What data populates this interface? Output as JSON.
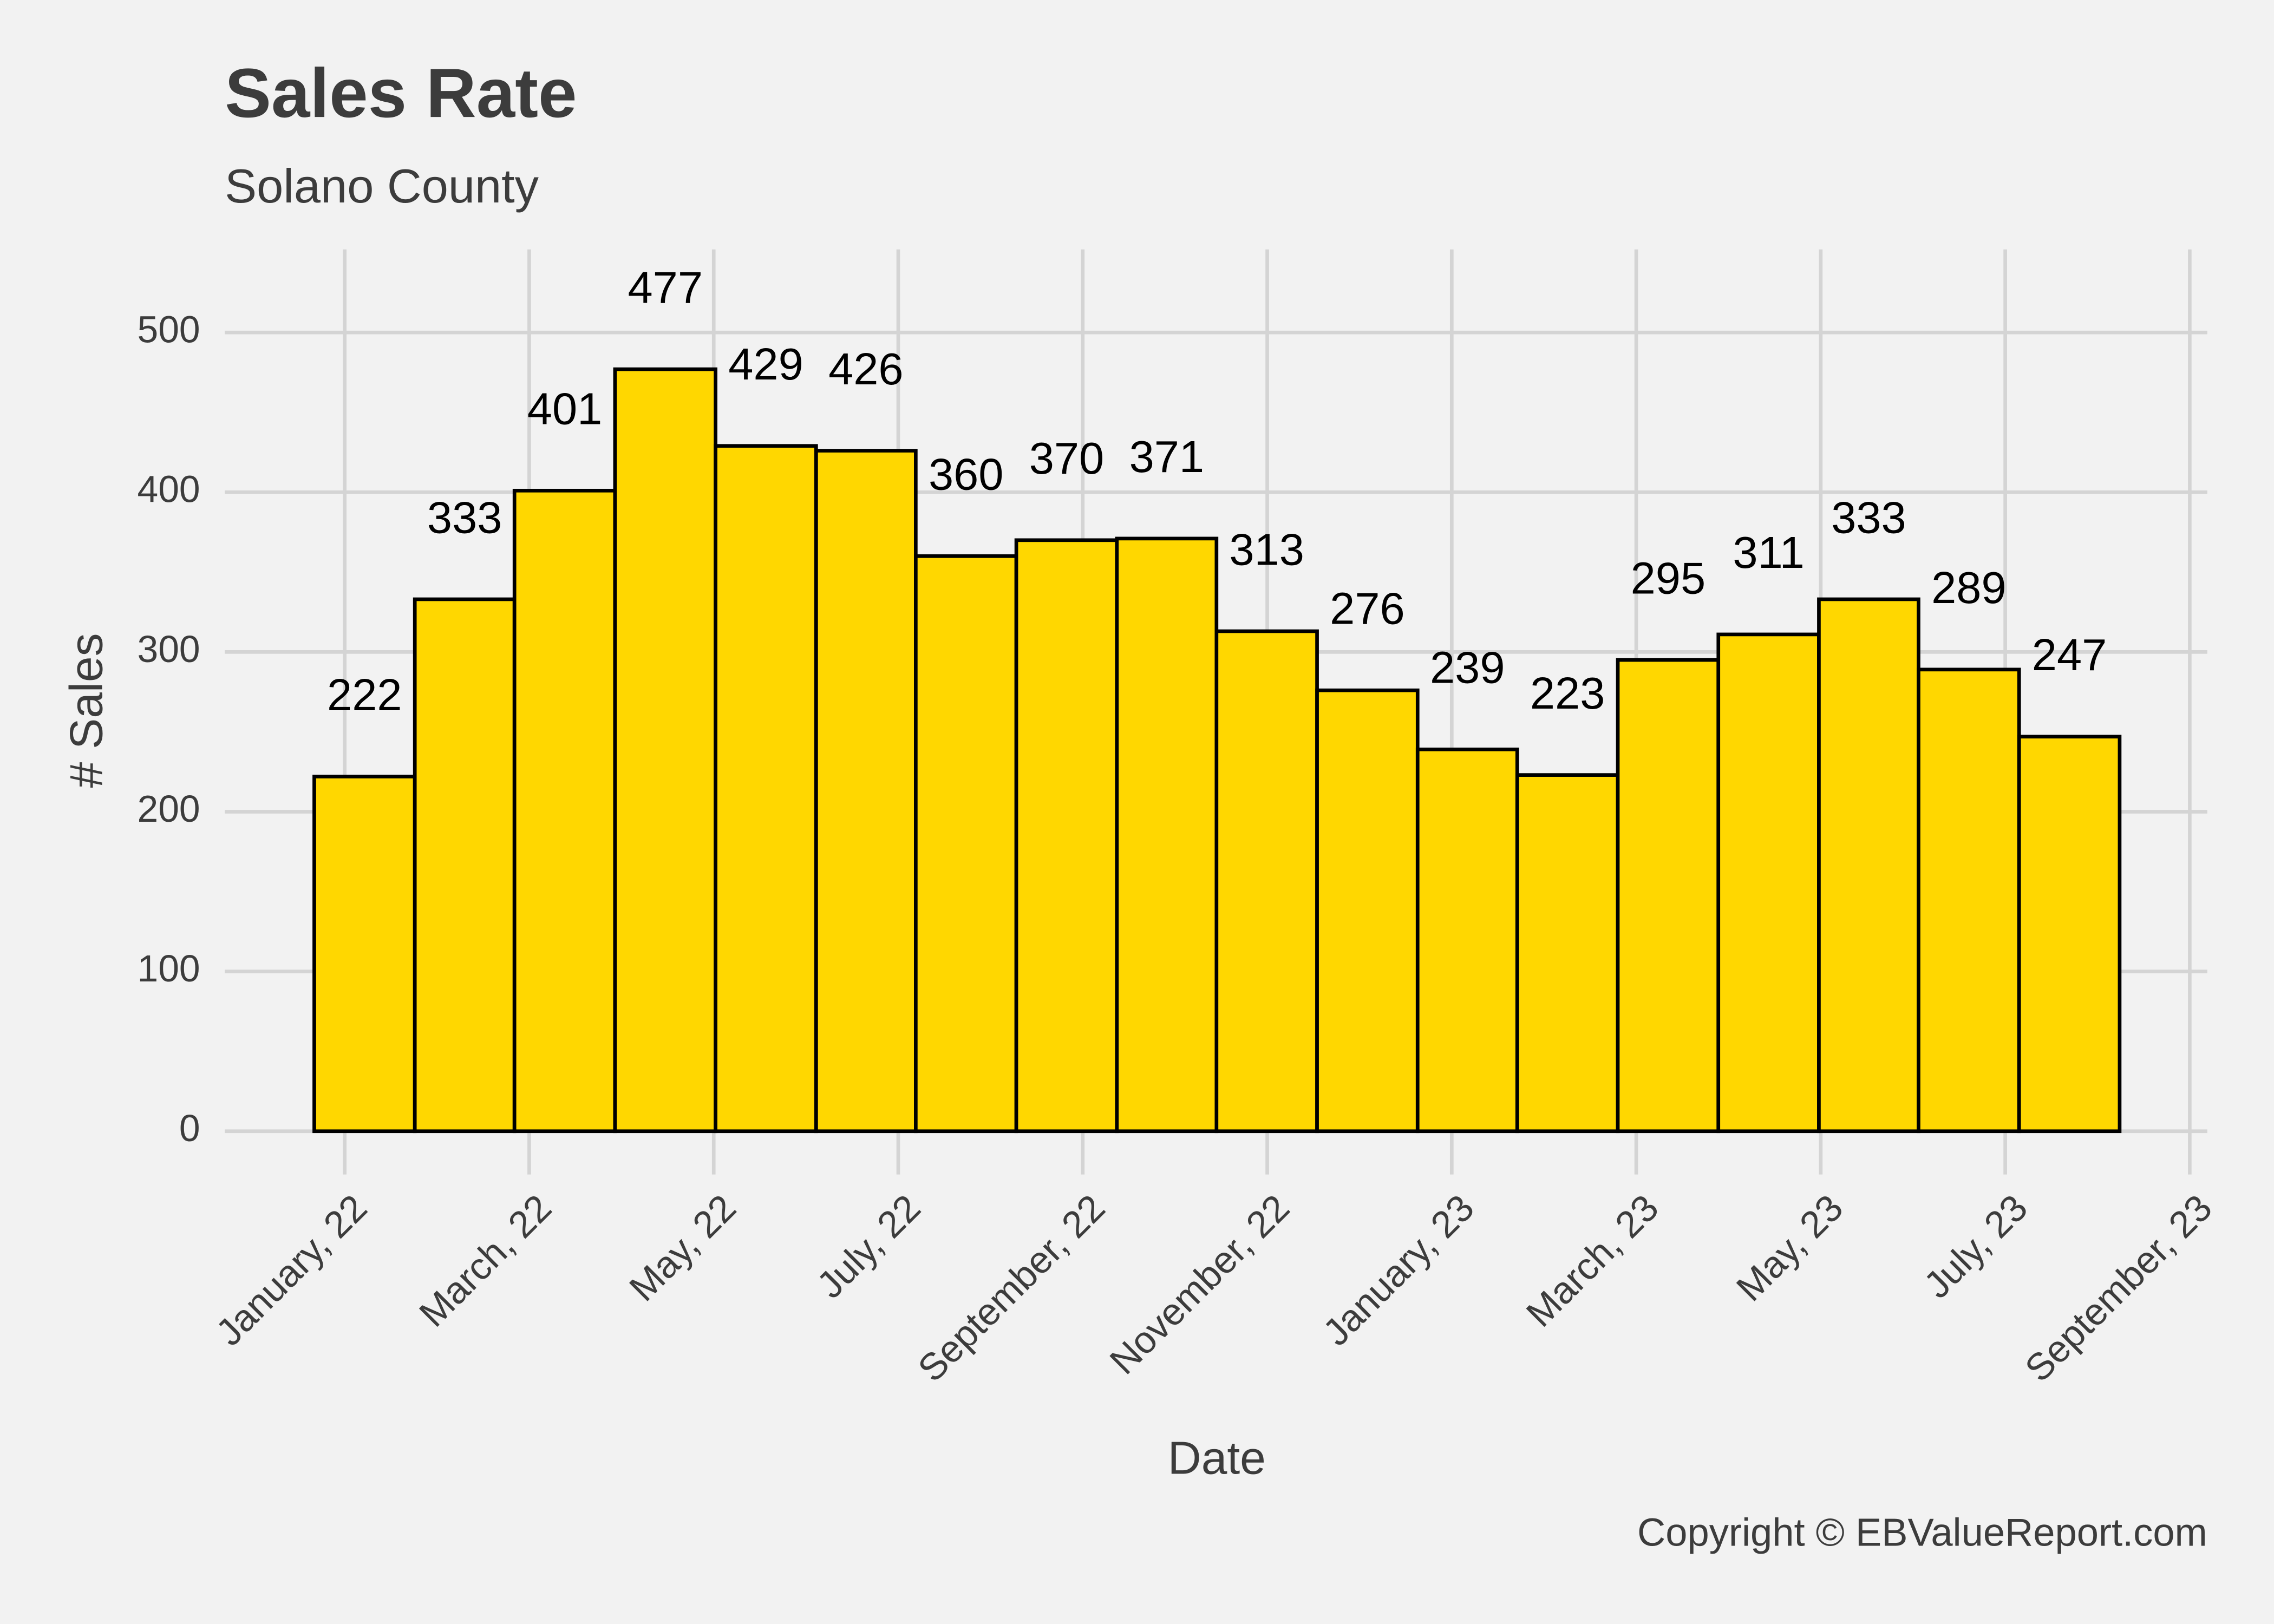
{
  "chart_data": {
    "type": "histogram",
    "title": "Sales Rate",
    "subtitle": "Solano County",
    "xlabel": "Date",
    "ylabel": "# Sales",
    "caption": "Copyright  © EBValueReport.com",
    "bins": [
      -0.33,
      0.76,
      1.84,
      2.93,
      4.02,
      5.11,
      6.19,
      7.28,
      8.37,
      9.45,
      10.54,
      11.63,
      12.71,
      13.8,
      14.89,
      15.98,
      17.06,
      18.15,
      19.24
    ],
    "values": [
      222,
      333,
      401,
      477,
      429,
      426,
      360,
      370,
      371,
      313,
      276,
      239,
      223,
      295,
      311,
      333,
      289,
      247
    ],
    "color": "#ffd700",
    "edgecolor": "#000000",
    "xlim": [
      -1.3,
      20.19
    ],
    "xticks": [
      {
        "value": 0,
        "label": "January, 22"
      },
      {
        "value": 2,
        "label": "March, 22"
      },
      {
        "value": 4,
        "label": "May, 22"
      },
      {
        "value": 6,
        "label": "July, 22"
      },
      {
        "value": 8,
        "label": "September, 22"
      },
      {
        "value": 10,
        "label": "November, 22"
      },
      {
        "value": 12,
        "label": "January, 23"
      },
      {
        "value": 14,
        "label": "March, 23"
      },
      {
        "value": 16,
        "label": "May, 23"
      },
      {
        "value": 18,
        "label": "July, 23"
      },
      {
        "value": 20,
        "label": "September, 23"
      }
    ],
    "ylim": [
      -18,
      552
    ],
    "yticks": [
      0,
      100,
      200,
      300,
      400,
      500
    ],
    "grid": true
  }
}
